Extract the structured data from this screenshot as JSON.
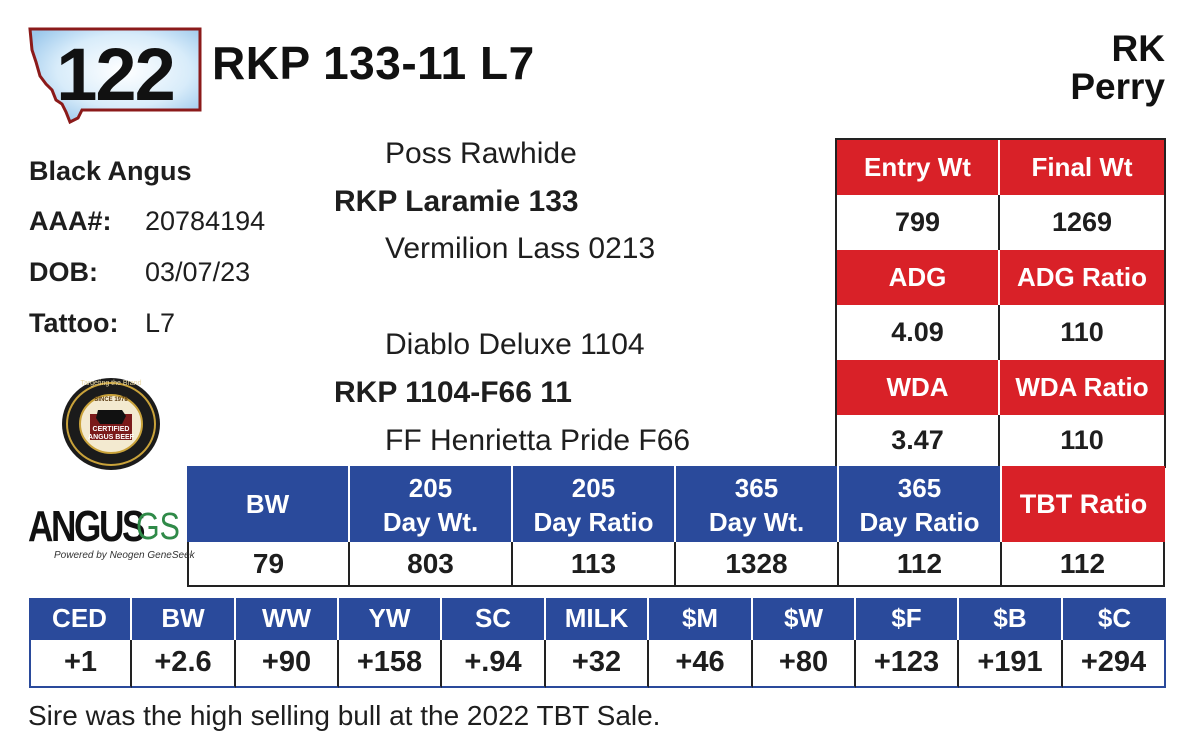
{
  "lot_number": "122",
  "animal_name": "RKP 133-11 L7",
  "consignor": {
    "line1": "RK",
    "line2": "Perry"
  },
  "breed": "Black Angus",
  "registration": {
    "label": "AAA#:",
    "value": "20784194"
  },
  "dob": {
    "label": "DOB:",
    "value": "03/07/23"
  },
  "tattoo": {
    "label": "Tattoo:",
    "value": "L7"
  },
  "pedigree": {
    "sire_sire": "Poss Rawhide",
    "sire": "RKP Laramie 133",
    "sire_dam": "Vermilion Lass 0213",
    "dam_sire": "Diablo Deluxe 1104",
    "dam": "RKP 1104-F66 11",
    "dam_dam": "FF Henrietta Pride F66"
  },
  "test_stats": {
    "entry_wt_label": "Entry Wt",
    "entry_wt": "799",
    "final_wt_label": "Final Wt",
    "final_wt": "1269",
    "adg_label": "ADG",
    "adg": "4.09",
    "adg_ratio_label": "ADG Ratio",
    "adg_ratio": "110",
    "wda_label": "WDA",
    "wda": "3.47",
    "wda_ratio_label": "WDA Ratio",
    "wda_ratio": "110",
    "tbt_ratio_label": "TBT Ratio",
    "tbt_ratio": "112"
  },
  "performance": {
    "headers": [
      {
        "line1": "BW",
        "line2": ""
      },
      {
        "line1": "205",
        "line2": "Day Wt."
      },
      {
        "line1": "205",
        "line2": "Day Ratio"
      },
      {
        "line1": "365",
        "line2": "Day Wt."
      },
      {
        "line1": "365",
        "line2": "Day Ratio"
      }
    ],
    "values": [
      "79",
      "803",
      "113",
      "1328",
      "112"
    ]
  },
  "epds": {
    "headers": [
      "CED",
      "BW",
      "WW",
      "YW",
      "SC",
      "MILK",
      "$M",
      "$W",
      "$F",
      "$B",
      "$C"
    ],
    "values": [
      "+1",
      "+2.6",
      "+90",
      "+158",
      "+.94",
      "+32",
      "+46",
      "+80",
      "+123",
      "+191",
      "+294"
    ]
  },
  "footnote": "Sire was the high selling bull at the 2022 TBT Sale.",
  "logos": {
    "cab": {
      "text_top": "Targeting the Brand",
      "text_mid1": "CERTIFIED",
      "text_mid2": "ANGUS BEEF",
      "text_small": "SINCE 1978"
    },
    "angus_gs": {
      "main": "ANGUS",
      "accent": "GS",
      "sub": "Powered by Neogen GeneSeek"
    }
  },
  "colors": {
    "red": "#d92128",
    "blue": "#2a4a9b",
    "badge_border": "#8b1a1a",
    "badge_fill": "#cfe6f7"
  }
}
